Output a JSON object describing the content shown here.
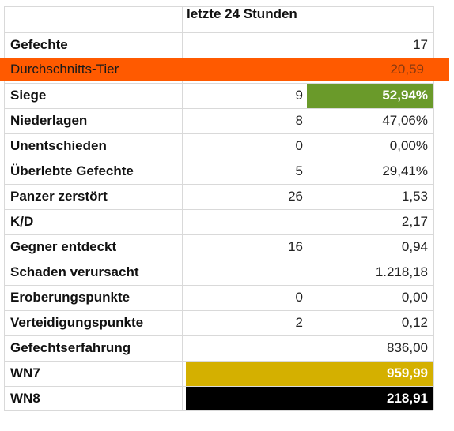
{
  "header": {
    "period": "letzte 24 Stunden"
  },
  "rows": [
    {
      "label": "Gefechte",
      "count": "",
      "value": "17"
    },
    {
      "label": "Durchschnitts-Tier",
      "count": "",
      "value": "20,59"
    },
    {
      "label": "Siege",
      "count": "9",
      "value": "52,94%"
    },
    {
      "label": "Niederlagen",
      "count": "8",
      "value": "47,06%"
    },
    {
      "label": "Unentschieden",
      "count": "0",
      "value": "0,00%"
    },
    {
      "label": "Überlebte Gefechte",
      "count": "5",
      "value": "29,41%"
    },
    {
      "label": "Panzer zerstört",
      "count": "26",
      "value": "1,53"
    },
    {
      "label": "K/D",
      "count": "",
      "value": "2,17"
    },
    {
      "label": "Gegner entdeckt",
      "count": "16",
      "value": "0,94"
    },
    {
      "label": "Schaden verursacht",
      "count": "",
      "value": "1.218,18"
    },
    {
      "label": "Eroberungspunkte",
      "count": "0",
      "value": "0,00"
    },
    {
      "label": "Verteidigungspunkte",
      "count": "2",
      "value": "0,12"
    },
    {
      "label": "Gefechtserfahrung",
      "count": "",
      "value": "836,00"
    },
    {
      "label": "WN7",
      "count": "",
      "value": "959,99"
    },
    {
      "label": "WN8",
      "count": "",
      "value": "218,91"
    }
  ],
  "colors": {
    "highlight_orange": "#ff5a00",
    "siege_green": "#6a9a2a",
    "wn7_gold": "#d4b000",
    "wn8_black": "#000000"
  }
}
